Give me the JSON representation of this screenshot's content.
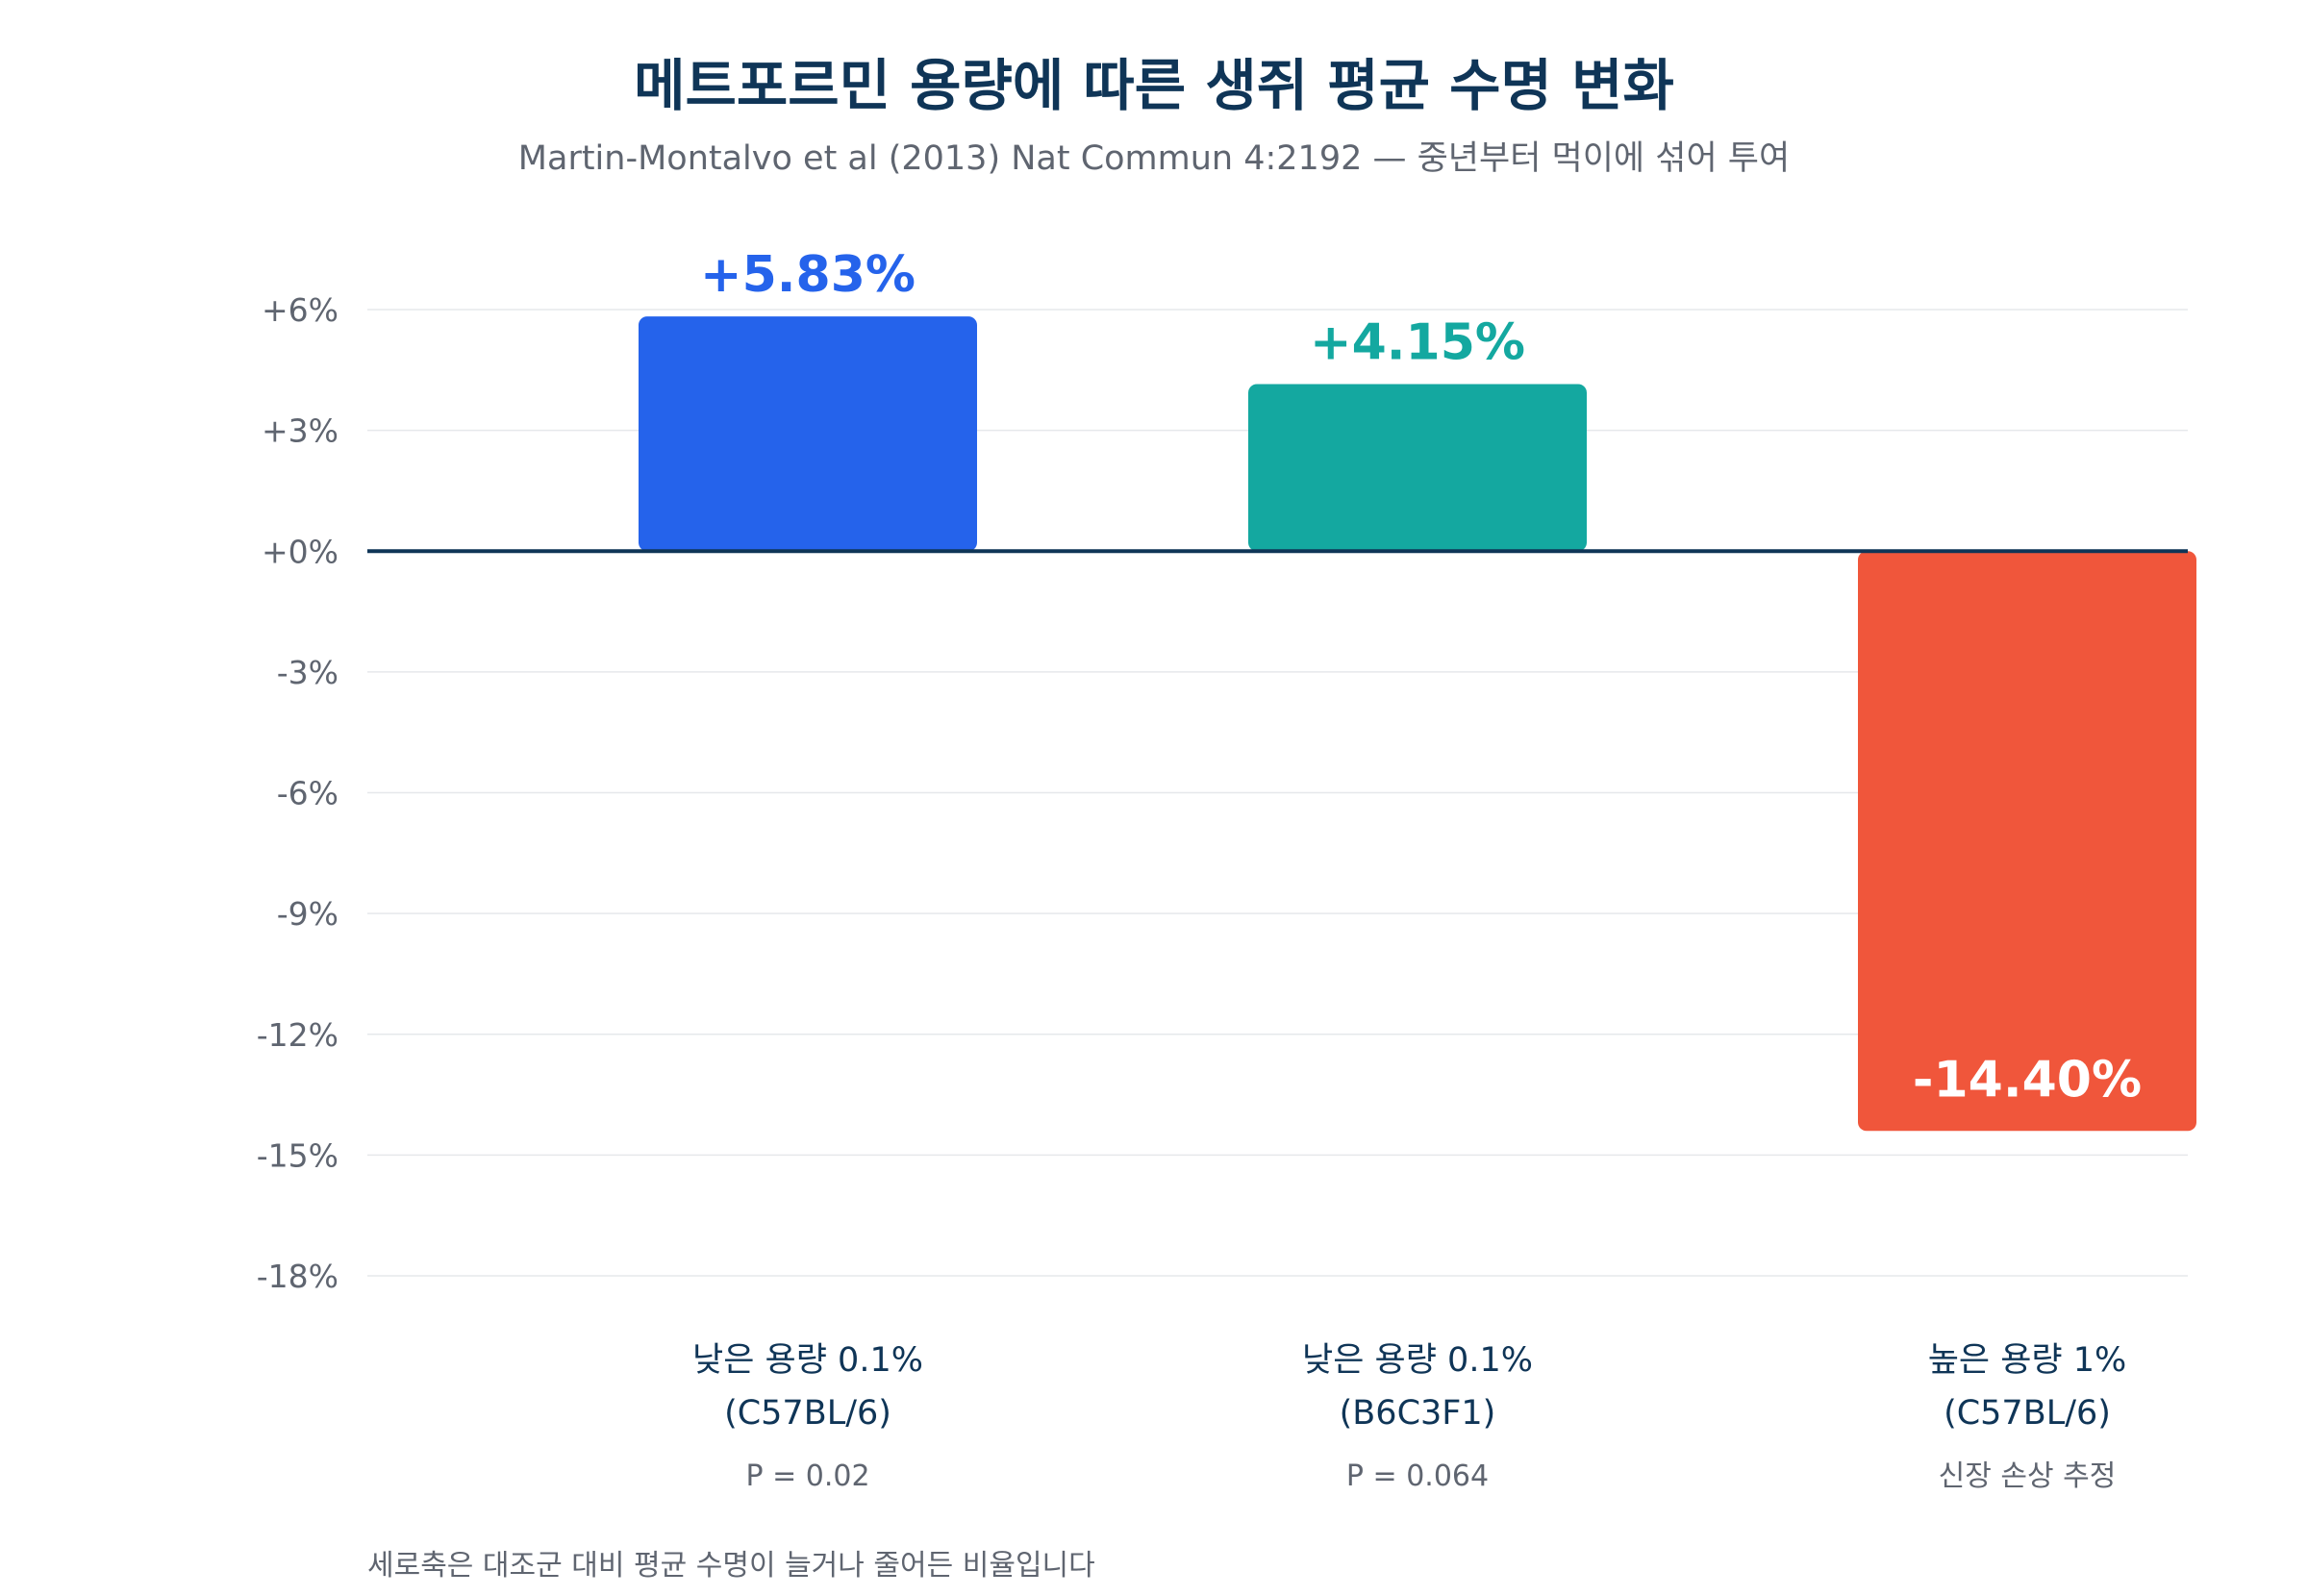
{
  "chart_data": {
    "type": "bar",
    "title": "메트포르민 용량에 따른 생쥐 평균 수명 변화",
    "subtitle": "Martin-Montalvo et al (2013) Nat Commun 4:2192 — 중년부터 먹이에 섞어 투여",
    "ylabel": "",
    "ylim": [
      -18,
      6
    ],
    "yticks": [
      6,
      3,
      0,
      -3,
      -6,
      -9,
      -12,
      -15,
      -18
    ],
    "ytick_labels": [
      "+6%",
      "+3%",
      "+0%",
      "-3%",
      "-6%",
      "-9%",
      "-12%",
      "-15%",
      "-18%"
    ],
    "grid": true,
    "categories": [
      {
        "line1": "낮은 용량 0.1%",
        "line2": "(C57BL/6)",
        "note": "P = 0.02"
      },
      {
        "line1": "낮은 용량 0.1%",
        "line2": "(B6C3F1)",
        "note": "P = 0.064"
      },
      {
        "line1": "높은 용량 1%",
        "line2": "(C57BL/6)",
        "note": "신장 손상 추정"
      }
    ],
    "values": [
      5.83,
      4.15,
      -14.4
    ],
    "value_labels": [
      "+5.83%",
      "+4.15%",
      "-14.40%"
    ],
    "colors": [
      "#2563eb",
      "#14a8a0",
      "#f0563b"
    ],
    "label_colors": [
      "#2563eb",
      "#14a8a0",
      "#ffffff"
    ],
    "footnote": "세로축은 대조군 대비 평균 수명이 늘거나 줄어든 비율입니다"
  }
}
